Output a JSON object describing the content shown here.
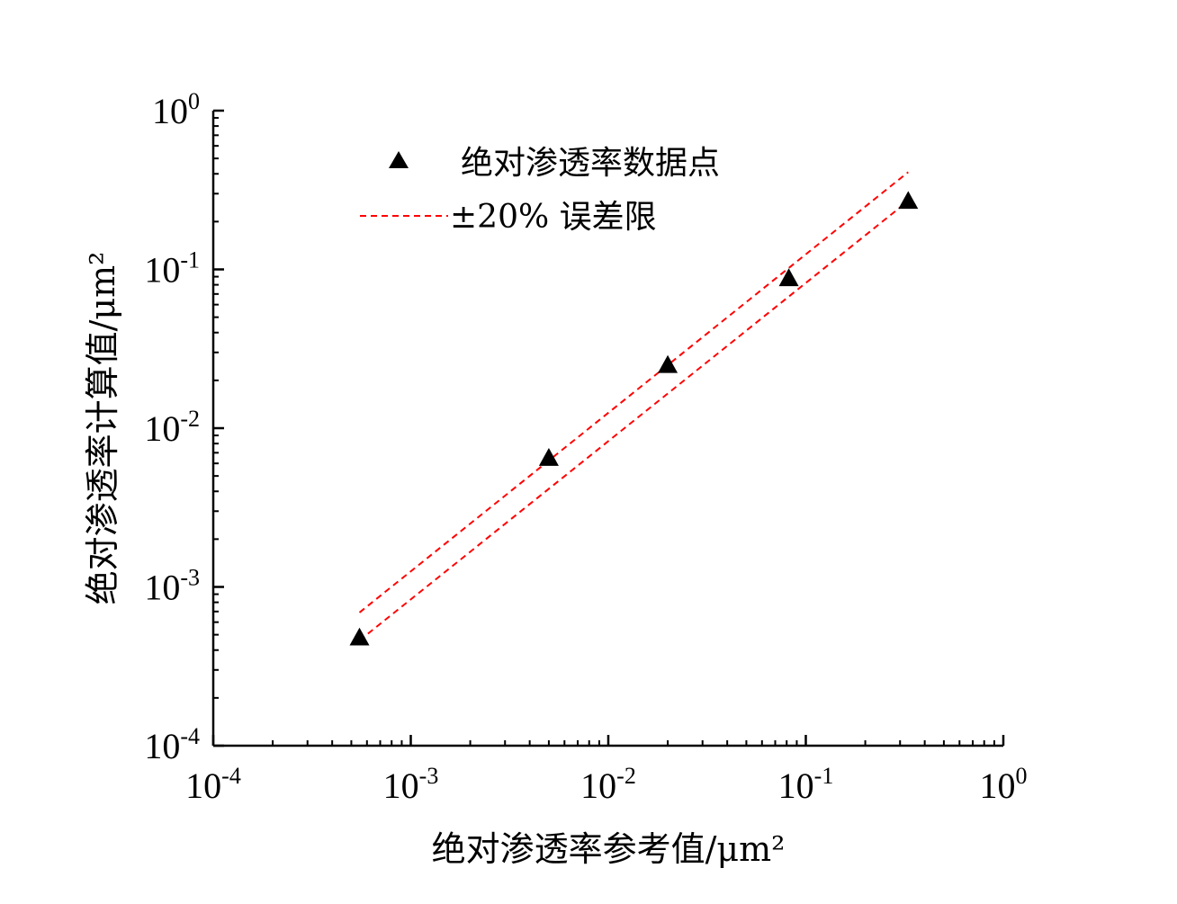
{
  "chart_data": {
    "type": "scatter",
    "x_scale": "log",
    "y_scale": "log",
    "xlim": [
      0.0001,
      1
    ],
    "ylim": [
      0.0001,
      1
    ],
    "xlabel": "绝对渗透率参考值/μm²",
    "ylabel": "绝对渗透率计算值/μm²",
    "x_ticks": [
      {
        "value": 0.0001,
        "base": "10",
        "exp": "-4"
      },
      {
        "value": 0.001,
        "base": "10",
        "exp": "-3"
      },
      {
        "value": 0.01,
        "base": "10",
        "exp": "-2"
      },
      {
        "value": 0.1,
        "base": "10",
        "exp": "-1"
      },
      {
        "value": 1,
        "base": "10",
        "exp": "0"
      }
    ],
    "y_ticks": [
      {
        "value": 0.0001,
        "base": "10",
        "exp": "-4"
      },
      {
        "value": 0.001,
        "base": "10",
        "exp": "-3"
      },
      {
        "value": 0.01,
        "base": "10",
        "exp": "-2"
      },
      {
        "value": 0.1,
        "base": "10",
        "exp": "-1"
      },
      {
        "value": 1,
        "base": "10",
        "exp": "0"
      }
    ],
    "series": [
      {
        "name": "绝对渗透率数据点",
        "kind": "scatter",
        "marker": "triangle",
        "color": "#000000",
        "points": [
          {
            "x": 0.00055,
            "y": 0.00048
          },
          {
            "x": 0.005,
            "y": 0.0065
          },
          {
            "x": 0.02,
            "y": 0.025
          },
          {
            "x": 0.082,
            "y": 0.088
          },
          {
            "x": 0.33,
            "y": 0.27
          }
        ]
      },
      {
        "name": "±20% 误差限",
        "kind": "line",
        "style": "dashed",
        "color": "#ff0000",
        "lines": [
          {
            "x": [
              0.00055,
              0.33
            ],
            "y": [
              0.00069,
              0.41
            ]
          },
          {
            "x": [
              0.00055,
              0.33
            ],
            "y": [
              0.00046,
              0.27
            ]
          }
        ]
      }
    ],
    "legend": {
      "position": "top-left",
      "items": [
        "绝对渗透率数据点",
        "±20% 误差限"
      ]
    },
    "grid": false
  }
}
